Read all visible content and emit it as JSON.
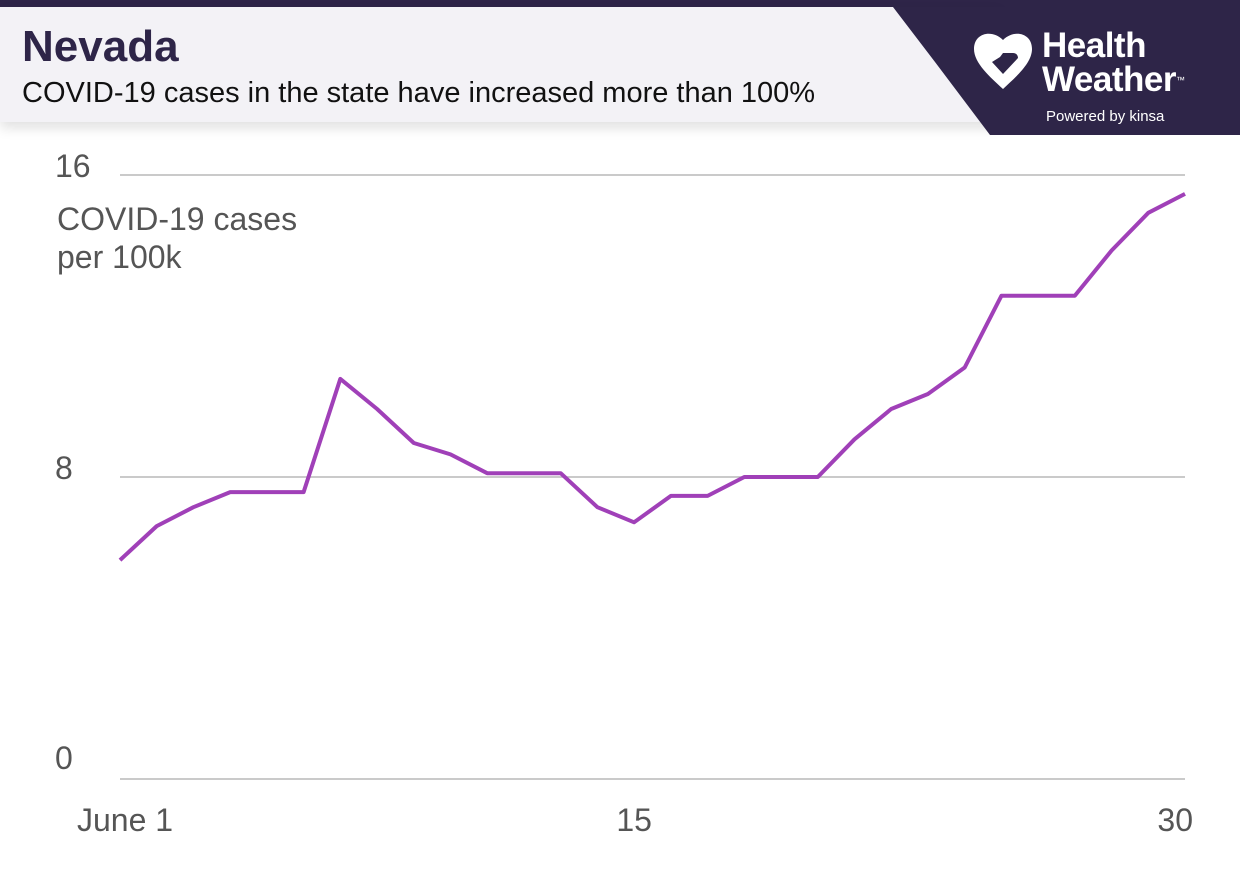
{
  "header": {
    "title": "Nevada",
    "subtitle": "COVID-19 cases in the state have increased more than 100%"
  },
  "brand": {
    "line1": "Health",
    "line2": "Weather",
    "trademark": "™",
    "powered": "Powered by kinsa",
    "bg_color": "#2e2548",
    "logo_icon": "heart-shield-icon"
  },
  "chart_data": {
    "type": "line",
    "ylabel_lines": [
      "COVID-19 cases",
      "per 100k"
    ],
    "ylim": [
      0,
      16
    ],
    "yticks": [
      "0",
      "8",
      "16"
    ],
    "xtick_labels": [
      {
        "day": 1,
        "label": "June 1"
      },
      {
        "day": 15,
        "label": "15"
      },
      {
        "day": 30,
        "label": "30"
      }
    ],
    "grid": true,
    "line_color": "#a040b8",
    "series": [
      {
        "x": [
          1,
          2,
          3,
          4,
          5,
          6,
          7,
          8,
          9,
          10,
          11,
          12,
          13,
          14,
          15,
          16,
          17,
          18,
          19,
          20,
          21,
          22,
          23,
          24,
          25,
          26,
          27,
          28,
          29,
          30
        ],
        "values": [
          5.8,
          6.7,
          7.2,
          7.6,
          7.6,
          7.6,
          10.6,
          9.8,
          8.9,
          8.6,
          8.1,
          8.1,
          8.1,
          7.2,
          6.8,
          7.5,
          7.5,
          8.0,
          8.0,
          8.0,
          9.0,
          9.8,
          10.2,
          10.9,
          12.8,
          12.8,
          12.8,
          14.0,
          15.0,
          15.5
        ]
      }
    ]
  }
}
